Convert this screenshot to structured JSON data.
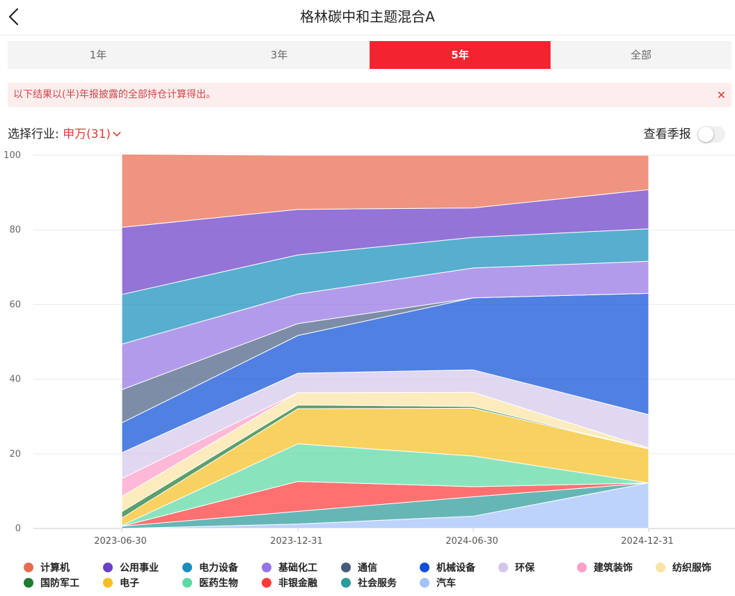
{
  "header": {
    "title": "格林碳中和主题混合A",
    "back_icon": "chevron-left-icon"
  },
  "tabs": [
    {
      "label": "1年",
      "active": false
    },
    {
      "label": "3年",
      "active": false
    },
    {
      "label": "5年",
      "active": true
    },
    {
      "label": "全部",
      "active": false
    }
  ],
  "notice": {
    "text": "以下结果以(半)年报披露的全部持仓计算得出。",
    "close": "✕"
  },
  "filter": {
    "label": "选择行业:",
    "value": "申万(31)",
    "chevron": "chevron-down-icon"
  },
  "quarter_toggle": {
    "label": "查看季报",
    "on": false
  },
  "chart_data": {
    "type": "area",
    "stacked": true,
    "x": [
      "2023-06-30",
      "2023-12-31",
      "2024-06-30",
      "2024-12-31"
    ],
    "ylim": [
      0,
      100
    ],
    "yticks": [
      0,
      20,
      40,
      60,
      80,
      100
    ],
    "grid": true,
    "legend_position": "bottom",
    "series": [
      {
        "name": "汽车",
        "color": "#a4c2fb",
        "values": [
          0.0,
          1.2,
          3.3,
          12.2
        ]
      },
      {
        "name": "社会服务",
        "color": "#2b9a9a",
        "values": [
          0.6,
          3.4,
          5.2,
          0.0
        ]
      },
      {
        "name": "非银金融",
        "color": "#ff3a3a",
        "values": [
          0.0,
          8.0,
          2.7,
          0.0
        ]
      },
      {
        "name": "医药生物",
        "color": "#5cd9a3",
        "values": [
          0.2,
          10.1,
          8.2,
          0.0
        ]
      },
      {
        "name": "电子",
        "color": "#f5bf23",
        "values": [
          2.0,
          9.4,
          12.8,
          9.1
        ]
      },
      {
        "name": "国防军工",
        "color": "#1f7a34",
        "values": [
          1.7,
          1.0,
          0.5,
          0.0
        ]
      },
      {
        "name": "纺织服饰",
        "color": "#fbe3a3",
        "values": [
          4.1,
          3.3,
          3.8,
          0.3
        ]
      },
      {
        "name": "建筑装饰",
        "color": "#ff9ec9",
        "values": [
          4.8,
          0.0,
          0.0,
          0.0
        ]
      },
      {
        "name": "环保",
        "color": "#d4c7ec",
        "values": [
          6.9,
          5.2,
          6.0,
          8.9
        ]
      },
      {
        "name": "机械设备",
        "color": "#0d4fd6",
        "values": [
          8.0,
          10.1,
          19.3,
          32.5
        ]
      },
      {
        "name": "通信",
        "color": "#4c6185",
        "values": [
          8.9,
          3.2,
          0.0,
          0.0
        ]
      },
      {
        "name": "基础化工",
        "color": "#9575e3",
        "values": [
          12.2,
          7.9,
          8.0,
          8.6
        ]
      },
      {
        "name": "电力设备",
        "color": "#168fbd",
        "values": [
          13.3,
          10.5,
          8.2,
          8.7
        ]
      },
      {
        "name": "公用事业",
        "color": "#6b3fc7",
        "values": [
          18.0,
          12.2,
          7.9,
          10.5
        ]
      },
      {
        "name": "计算机",
        "color": "#e86b4f",
        "values": [
          19.6,
          14.5,
          14.1,
          9.2
        ]
      }
    ]
  },
  "legend": [
    {
      "name": "计算机",
      "color": "#e86b4f"
    },
    {
      "name": "公用事业",
      "color": "#6b3fc7"
    },
    {
      "name": "电力设备",
      "color": "#168fbd"
    },
    {
      "name": "基础化工",
      "color": "#9575e3"
    },
    {
      "name": "通信",
      "color": "#455a7d"
    },
    {
      "name": "机械设备",
      "color": "#0d4fd6"
    },
    {
      "name": "环保",
      "color": "#d4c7ec"
    },
    {
      "name": "建筑装饰",
      "color": "#ff9ec9"
    },
    {
      "name": "纺织服饰",
      "color": "#fbe3a3"
    },
    {
      "name": "国防军工",
      "color": "#1f7a34"
    },
    {
      "name": "电子",
      "color": "#f5bf23"
    },
    {
      "name": "医药生物",
      "color": "#5cd9a3"
    },
    {
      "name": "非银金融",
      "color": "#ff3a3a"
    },
    {
      "name": "社会服务",
      "color": "#2b9a9a"
    },
    {
      "name": "汽车",
      "color": "#a4c2fb"
    }
  ]
}
